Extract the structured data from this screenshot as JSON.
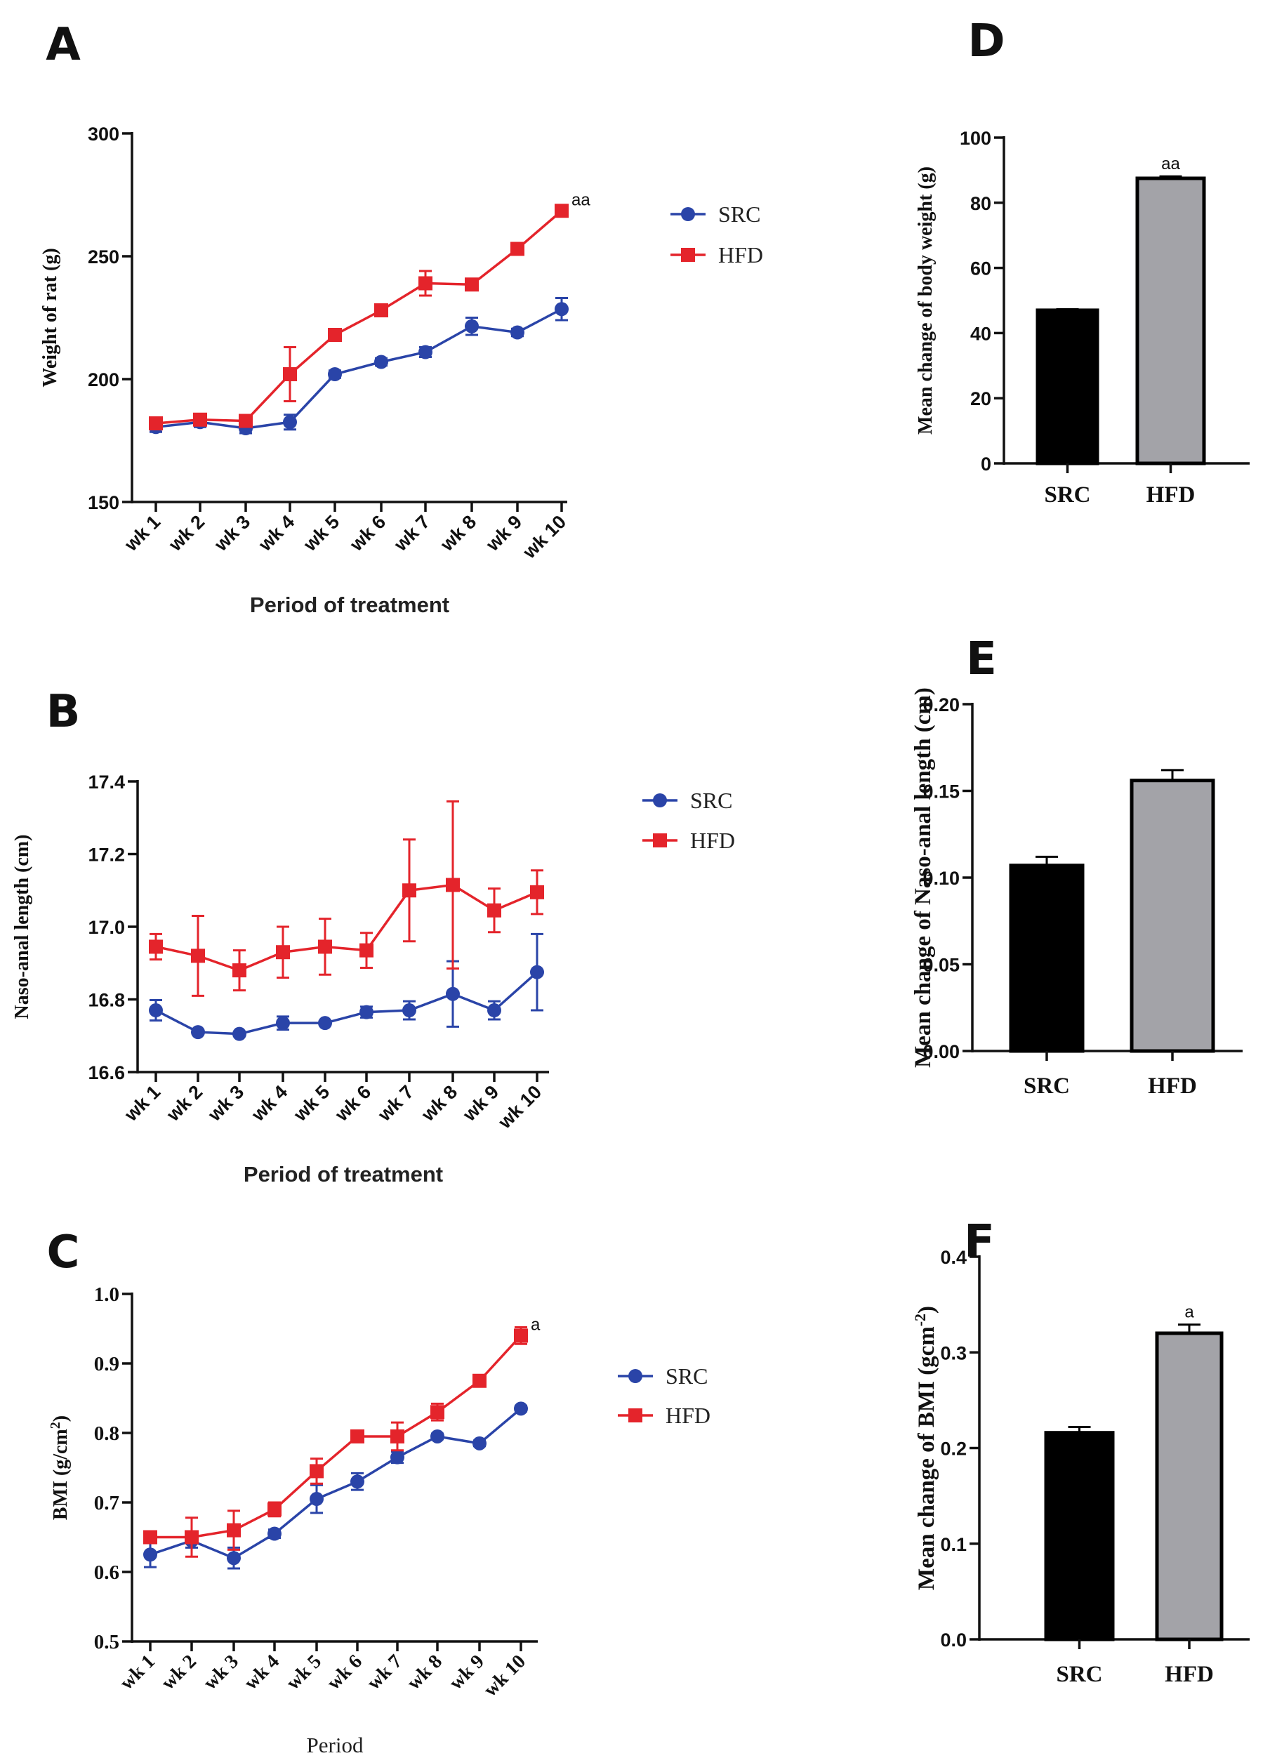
{
  "colors": {
    "src": "#2a44a8",
    "hfd": "#e4242b",
    "bar_src": "#000000",
    "bar_hfd": "#a3a3a8"
  },
  "chart_data": [
    {
      "id": "A",
      "panel_label": "A",
      "type": "line",
      "xlabel": "Period of treatment",
      "ylabel": "Weight of rat (g)",
      "categories": [
        "wk 1",
        "wk 2",
        "wk 3",
        "wk 4",
        "wk 5",
        "wk 6",
        "wk 7",
        "wk 8",
        "wk 9",
        "wk 10"
      ],
      "ylim": [
        150,
        300
      ],
      "yticks": [
        150,
        200,
        250,
        300
      ],
      "series": [
        {
          "name": "SRC",
          "marker": "circle",
          "values": [
            180.5,
            182.5,
            180,
            182.5,
            202,
            207,
            211,
            221.5,
            219,
            228.5
          ],
          "errors": [
            2,
            2,
            2,
            3,
            1.5,
            1.5,
            2,
            3.5,
            1.5,
            4.5
          ]
        },
        {
          "name": "HFD",
          "marker": "square",
          "values": [
            182,
            183.5,
            183,
            202,
            218,
            228,
            239,
            238.5,
            253,
            268.5
          ],
          "errors": [
            1.5,
            1.5,
            1.5,
            11,
            2,
            1.5,
            5,
            2,
            1.5,
            1.5
          ]
        }
      ],
      "annotation": {
        "text": "aa",
        "series": 1,
        "index": 9
      },
      "legend": "right",
      "grid": false
    },
    {
      "id": "B",
      "panel_label": "B",
      "type": "line",
      "xlabel": "Period of treatment",
      "ylabel": "Naso-anal length (cm)",
      "categories": [
        "wk 1",
        "wk 2",
        "wk 3",
        "wk 4",
        "wk 5",
        "wk 6",
        "wk 7",
        "wk 8",
        "wk 9",
        "wk 10"
      ],
      "ylim": [
        16.6,
        17.4
      ],
      "yticks": [
        16.6,
        16.8,
        17.0,
        17.2,
        17.4
      ],
      "ytick_labels": [
        "16.6",
        "16.8",
        "17.0",
        "17.2",
        "17.4"
      ],
      "series": [
        {
          "name": "SRC",
          "marker": "circle",
          "values": [
            16.77,
            16.71,
            16.705,
            16.735,
            16.735,
            16.765,
            16.77,
            16.815,
            16.77,
            16.875
          ],
          "errors": [
            0.028,
            0.005,
            0.005,
            0.018,
            0.005,
            0.015,
            0.025,
            0.09,
            0.025,
            0.105
          ]
        },
        {
          "name": "HFD",
          "marker": "square",
          "values": [
            16.945,
            16.92,
            16.88,
            16.93,
            16.945,
            16.935,
            17.1,
            17.115,
            17.045,
            17.095
          ],
          "errors": [
            0.035,
            0.11,
            0.055,
            0.07,
            0.077,
            0.048,
            0.14,
            0.23,
            0.06,
            0.06
          ]
        }
      ],
      "legend": "right",
      "grid": false
    },
    {
      "id": "C",
      "panel_label": "C",
      "type": "line",
      "xlabel": "Period",
      "ylabel": "BMI (g/cm",
      "ylabel_sup": "2",
      "ylabel_end": ")",
      "categories": [
        "wk 1",
        "wk 2",
        "wk 3",
        "wk 4",
        "wk 5",
        "wk 6",
        "wk 7",
        "wk 8",
        "wk 9",
        "wk 10"
      ],
      "ylim": [
        0.5,
        1.0
      ],
      "yticks": [
        0.5,
        0.6,
        0.7,
        0.8,
        0.9,
        1.0
      ],
      "ytick_labels": [
        "0.5",
        "0.6",
        "0.7",
        "0.8",
        "0.9",
        "1.0"
      ],
      "series": [
        {
          "name": "SRC",
          "marker": "circle",
          "values": [
            0.625,
            0.645,
            0.62,
            0.655,
            0.705,
            0.73,
            0.765,
            0.795,
            0.785,
            0.835
          ],
          "errors": [
            0.018,
            0.01,
            0.015,
            0.006,
            0.02,
            0.012,
            0.008,
            0.004,
            0.004,
            0.004
          ]
        },
        {
          "name": "HFD",
          "marker": "square",
          "values": [
            0.65,
            0.65,
            0.66,
            0.69,
            0.745,
            0.795,
            0.795,
            0.83,
            0.875,
            0.94
          ],
          "errors": [
            0.008,
            0.028,
            0.028,
            0.01,
            0.018,
            0.006,
            0.02,
            0.012,
            0.006,
            0.012
          ]
        }
      ],
      "annotation": {
        "text": "a",
        "series": 1,
        "index": 9
      },
      "legend": "right",
      "grid": false
    },
    {
      "id": "D",
      "panel_label": "D",
      "type": "bar",
      "ylabel": "Mean change of body weight (g)",
      "categories": [
        "SRC",
        "HFD"
      ],
      "values": [
        47,
        87.5
      ],
      "errors": [
        0.3,
        0.6
      ],
      "ylim": [
        0,
        100
      ],
      "yticks": [
        0,
        20,
        40,
        60,
        80,
        100
      ],
      "annotation": {
        "text": "aa",
        "index": 1
      }
    },
    {
      "id": "E",
      "panel_label": "E",
      "type": "bar",
      "ylabel": "Mean change of Naso-anal length (cm)",
      "categories": [
        "SRC",
        "HFD"
      ],
      "values": [
        0.107,
        0.156
      ],
      "errors": [
        0.005,
        0.006
      ],
      "ylim": [
        0,
        0.2
      ],
      "yticks": [
        0,
        0.05,
        0.1,
        0.15,
        0.2
      ],
      "ytick_labels": [
        "0.00",
        "0.05",
        "0.10",
        "0.15",
        "0.20"
      ]
    },
    {
      "id": "F",
      "panel_label": "F",
      "type": "bar",
      "ylabel": "Mean change of BMI (gcm",
      "ylabel_sup": "-2",
      "ylabel_end": ")",
      "categories": [
        "SRC",
        "HFD"
      ],
      "values": [
        0.216,
        0.32
      ],
      "errors": [
        0.006,
        0.009
      ],
      "ylim": [
        0,
        0.4
      ],
      "yticks": [
        0,
        0.1,
        0.2,
        0.3,
        0.4
      ],
      "ytick_labels": [
        "0.0",
        "0.1",
        "0.2",
        "0.3",
        "0.4"
      ],
      "annotation": {
        "text": "a",
        "index": 1
      }
    }
  ]
}
